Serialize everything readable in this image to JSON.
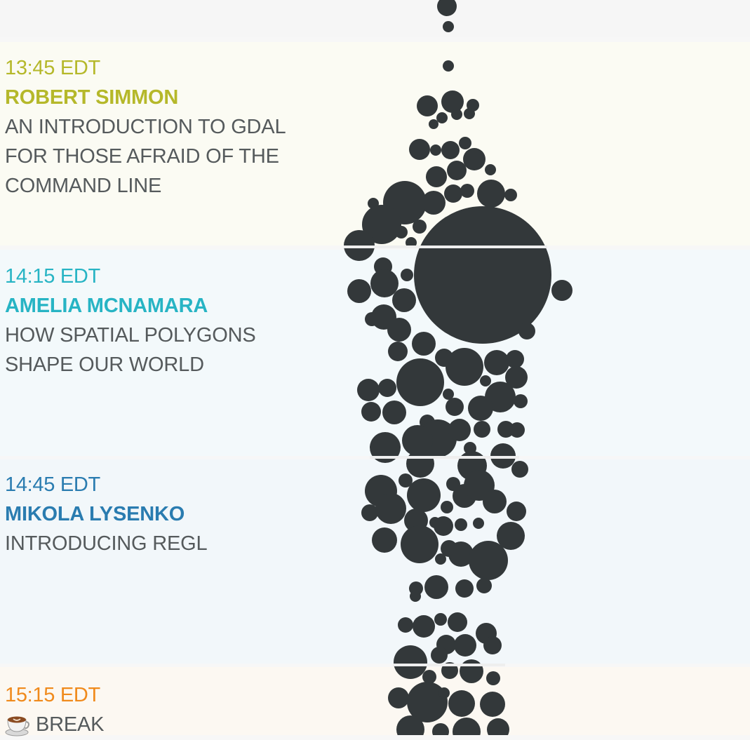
{
  "schedule": [
    {
      "time": "13:45 EDT",
      "speaker": "ROBERT SIMMON",
      "title_lines": [
        "AN INTRODUCTION TO GDAL",
        "FOR THOSE AFRAID OF THE",
        "COMMAND LINE"
      ],
      "accent": "#b5b82a"
    },
    {
      "time": "14:15 EDT",
      "speaker": "AMELIA MCNAMARA",
      "title_lines": [
        "HOW SPATIAL POLYGONS",
        "SHAPE OUR WORLD"
      ],
      "accent": "#27b4c4"
    },
    {
      "time": "14:45 EDT",
      "speaker": "MIKOLA LYSENKO",
      "title_lines": [
        "INTRODUCING REGL"
      ],
      "accent": "#2a7cb0"
    },
    {
      "time": "15:15 EDT",
      "break_label": "BREAK",
      "icon": "coffee-cup-icon",
      "accent": "#f08a1c"
    }
  ],
  "colors": {
    "dot_fill": "#33383a",
    "title_text": "#555a5c"
  }
}
